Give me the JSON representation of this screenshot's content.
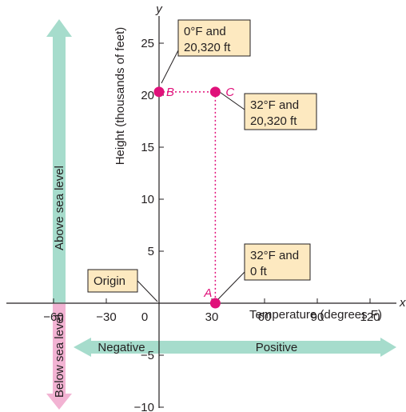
{
  "chart_data": {
    "type": "scatter",
    "xlabel": "Temperature (degrees F)",
    "ylabel": "Height (thousands of feet)",
    "x_axis_symbol": "x",
    "y_axis_symbol": "y",
    "xlim": [
      -65,
      140
    ],
    "ylim": [
      -11,
      28
    ],
    "x_ticks": [
      {
        "value": -60,
        "label": "−60"
      },
      {
        "value": -30,
        "label": "−30"
      },
      {
        "value": 0,
        "label": "0"
      },
      {
        "value": 30,
        "label": "30"
      },
      {
        "value": 60,
        "label": "60"
      },
      {
        "value": 90,
        "label": "90"
      },
      {
        "value": 120,
        "label": "120"
      }
    ],
    "y_ticks": [
      {
        "value": -10,
        "label": "−10"
      },
      {
        "value": -5,
        "label": "−5"
      },
      {
        "value": 5,
        "label": "5"
      },
      {
        "value": 10,
        "label": "10"
      },
      {
        "value": 15,
        "label": "15"
      },
      {
        "value": 20,
        "label": "20"
      },
      {
        "value": 25,
        "label": "25"
      }
    ],
    "points": [
      {
        "name": "A",
        "x": 32,
        "y": 0
      },
      {
        "name": "B",
        "x": 0,
        "y": 20.32
      },
      {
        "name": "C",
        "x": 32,
        "y": 20.32
      }
    ],
    "callouts": [
      {
        "name": "origin",
        "lines": [
          "Origin"
        ]
      },
      {
        "name": "point-b",
        "lines": [
          "0°F and",
          "20,320 ft"
        ]
      },
      {
        "name": "point-c",
        "lines": [
          "32°F and",
          "20,320 ft"
        ]
      },
      {
        "name": "point-a",
        "lines": [
          "32°F and",
          "0 ft"
        ]
      }
    ],
    "region_arrows": {
      "above": "Above sea level",
      "below": "Below sea level",
      "negative": "Negative",
      "positive": "Positive"
    },
    "colors": {
      "point": "#e0117a",
      "arrow": "#a6dccc",
      "callout_fill": "#fde9c0",
      "axis": "#231f20",
      "below_arrow": "#f2b3d3"
    }
  }
}
